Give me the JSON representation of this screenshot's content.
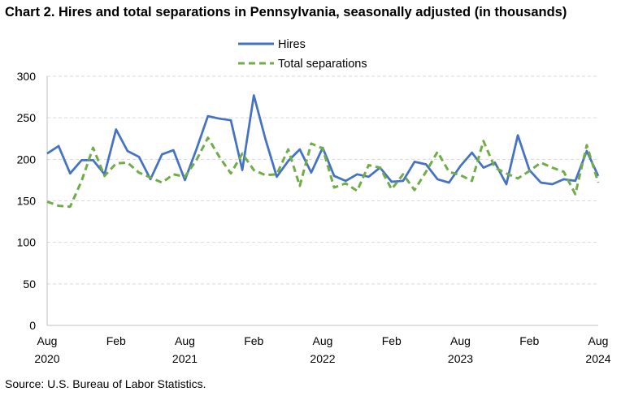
{
  "chart_data": {
    "type": "line",
    "title": "Chart 2. Hires and total separations in Pennsylvania, seasonally adjusted (in thousands)",
    "xlabel": "",
    "ylabel": "",
    "ylim": [
      0,
      300
    ],
    "yticks": [
      0,
      50,
      100,
      150,
      200,
      250,
      300
    ],
    "grid": true,
    "legend_position": "top-center",
    "x": [
      "Aug 2020",
      "Sep 2020",
      "Oct 2020",
      "Nov 2020",
      "Dec 2020",
      "Jan 2021",
      "Feb 2021",
      "Mar 2021",
      "Apr 2021",
      "May 2021",
      "Jun 2021",
      "Jul 2021",
      "Aug 2021",
      "Sep 2021",
      "Oct 2021",
      "Nov 2021",
      "Dec 2021",
      "Jan 2022",
      "Feb 2022",
      "Mar 2022",
      "Apr 2022",
      "May 2022",
      "Jun 2022",
      "Jul 2022",
      "Aug 2022",
      "Sep 2022",
      "Oct 2022",
      "Nov 2022",
      "Dec 2022",
      "Jan 2023",
      "Feb 2023",
      "Mar 2023",
      "Apr 2023",
      "May 2023",
      "Jun 2023",
      "Jul 2023",
      "Aug 2023",
      "Sep 2023",
      "Oct 2023",
      "Nov 2023",
      "Dec 2023",
      "Jan 2024",
      "Feb 2024",
      "Mar 2024",
      "Apr 2024",
      "May 2024",
      "Jun 2024",
      "Jul 2024",
      "Aug 2024"
    ],
    "x_tick_labels": [
      {
        "month": "Aug",
        "year": "2020"
      },
      {
        "month": "Feb",
        "year": ""
      },
      {
        "month": "Aug",
        "year": "2021"
      },
      {
        "month": "Feb",
        "year": ""
      },
      {
        "month": "Aug",
        "year": "2022"
      },
      {
        "month": "Feb",
        "year": ""
      },
      {
        "month": "Aug",
        "year": "2023"
      },
      {
        "month": "Feb",
        "year": ""
      },
      {
        "month": "Aug",
        "year": "2024"
      }
    ],
    "series": [
      {
        "name": "Hires",
        "color": "#4472C4",
        "dash": "solid",
        "values": [
          207,
          216,
          183,
          199,
          199,
          182,
          236,
          210,
          203,
          176,
          206,
          211,
          175,
          212,
          252,
          249,
          247,
          187,
          277,
          225,
          179,
          198,
          212,
          184,
          214,
          180,
          174,
          182,
          179,
          190,
          173,
          174,
          197,
          194,
          176,
          172,
          192,
          208,
          190,
          196,
          170,
          229,
          187,
          172,
          170,
          176,
          174,
          210,
          180
        ]
      },
      {
        "name": "Total separations",
        "color": "#70AD47",
        "dash": "dashed",
        "values": [
          149,
          144,
          143,
          174,
          214,
          180,
          195,
          196,
          184,
          178,
          172,
          182,
          179,
          199,
          226,
          203,
          183,
          207,
          187,
          181,
          182,
          212,
          168,
          219,
          213,
          166,
          171,
          162,
          193,
          190,
          164,
          182,
          163,
          185,
          209,
          185,
          181,
          174,
          222,
          190,
          183,
          177,
          186,
          196,
          190,
          185,
          158,
          217,
          172
        ]
      }
    ]
  },
  "source": "Source: U.S. Bureau of Labor Statistics."
}
